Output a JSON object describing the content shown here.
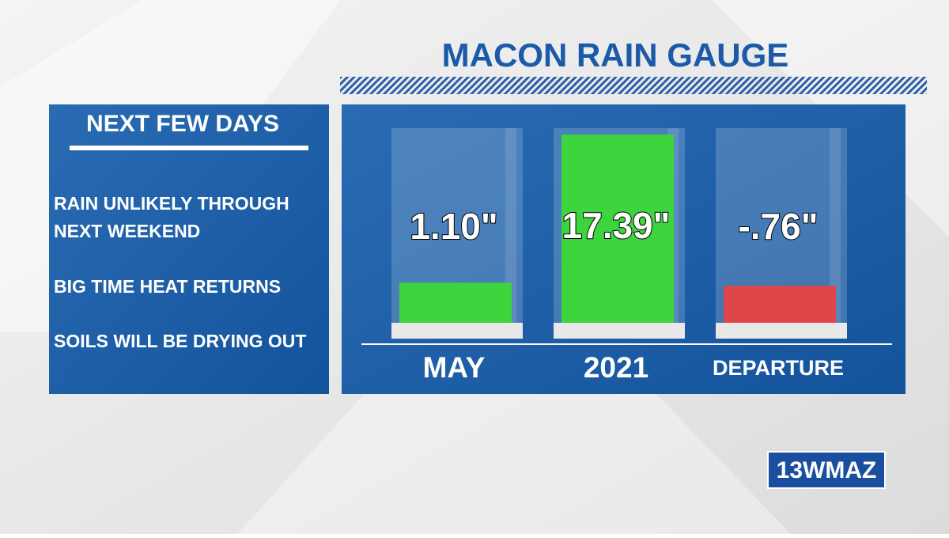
{
  "chart_data": {
    "type": "gauge-bar",
    "title": "MACON RAIN GAUGE",
    "categories": [
      "MAY",
      "2021",
      "DEPARTURE"
    ],
    "values": [
      1.1,
      17.39,
      -0.76
    ],
    "value_labels": [
      "1.10\"",
      "17.39\"",
      "-.76\""
    ],
    "colors": [
      "#3dd43d",
      "#3dd43d",
      "#e0454a"
    ]
  },
  "panel": {
    "title": "NEXT FEW DAYS",
    "bullets": [
      [
        "RAIN UNLIKELY THROUGH",
        "NEXT WEEKEND"
      ],
      [
        "BIG TIME HEAT RETURNS"
      ],
      [
        "SOILS WILL BE DRYING OUT"
      ]
    ]
  },
  "logo": "13WMAZ"
}
